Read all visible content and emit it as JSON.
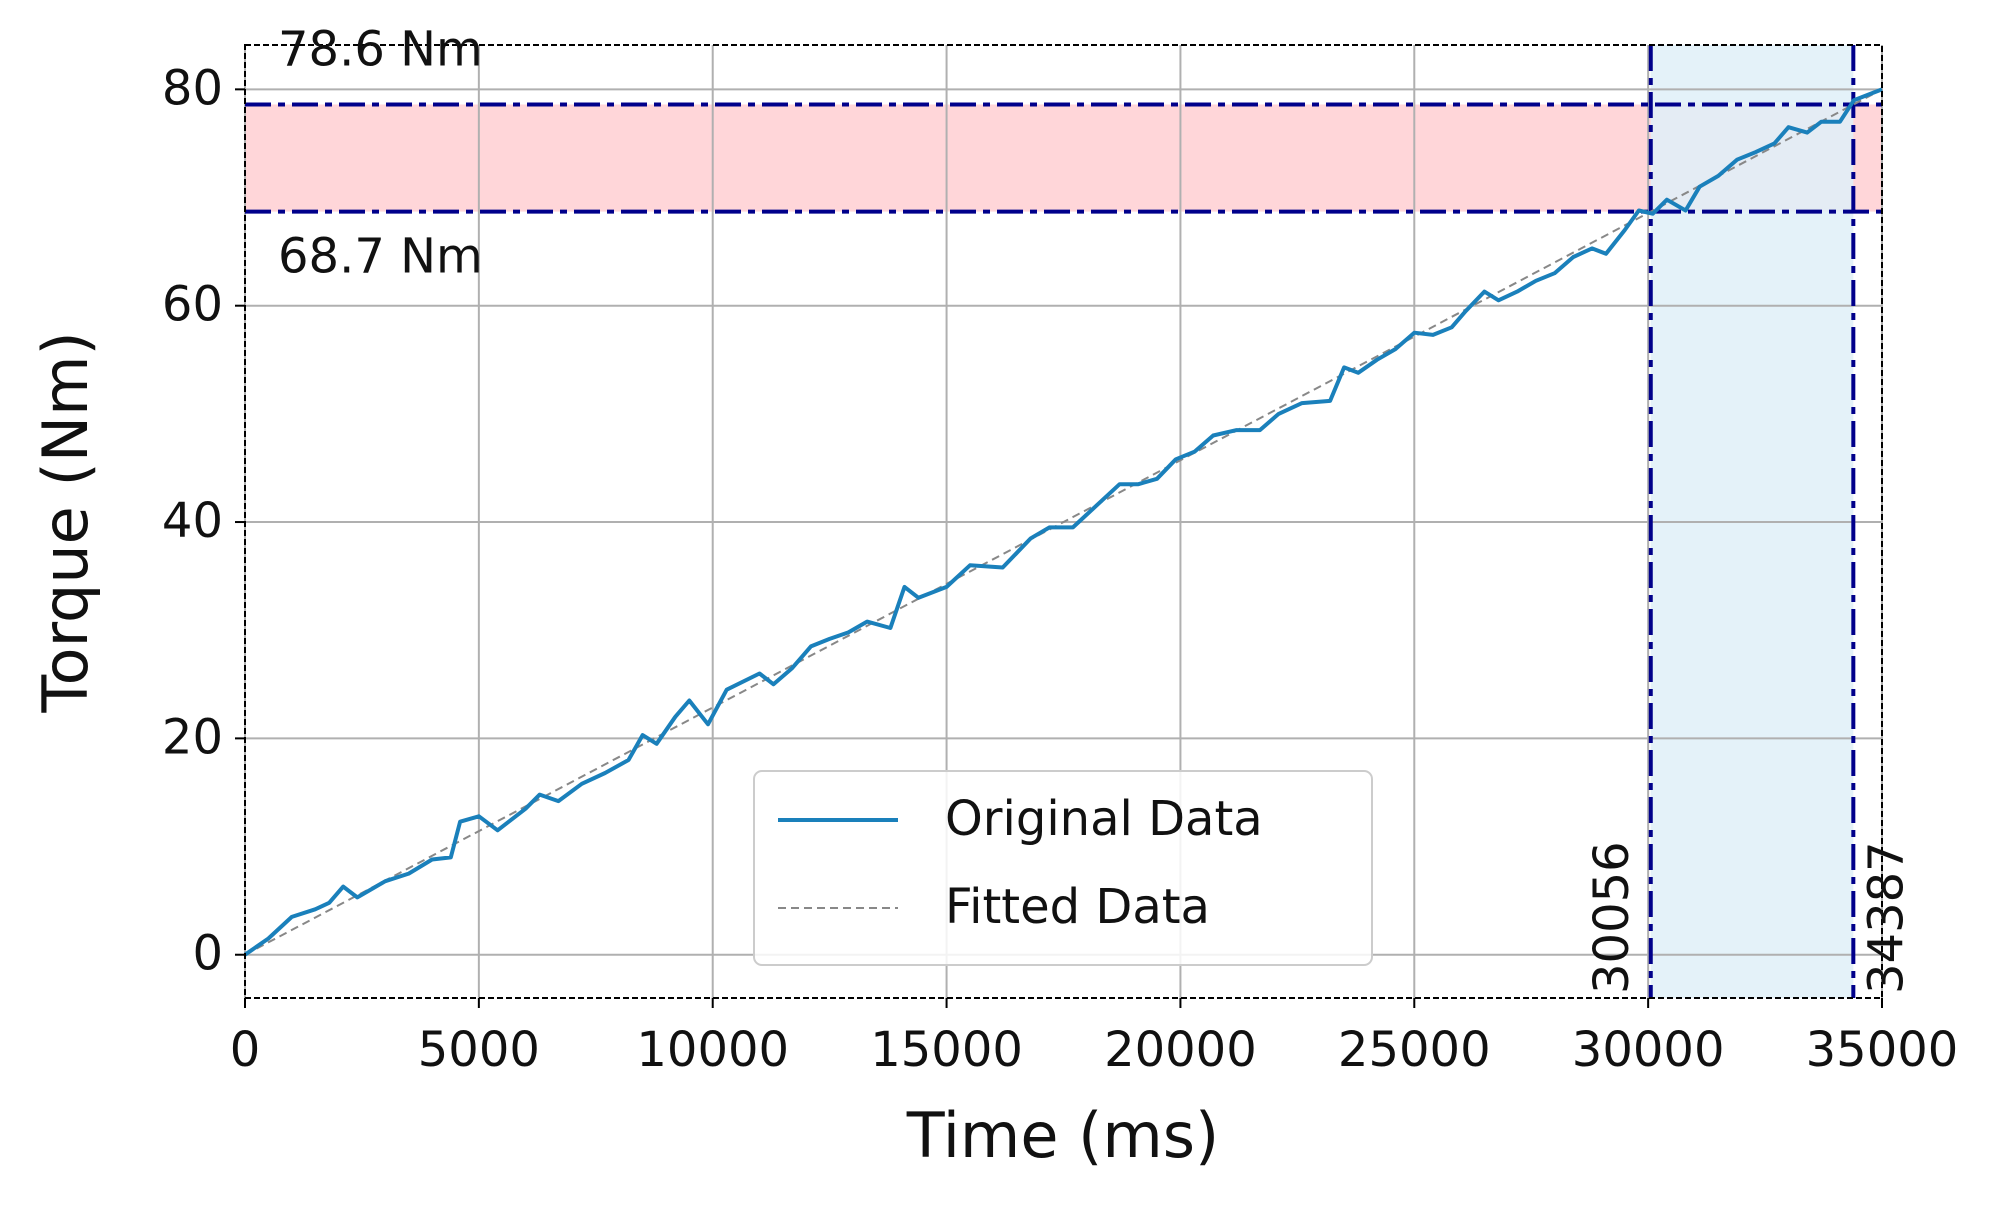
{
  "chart_data": {
    "type": "line",
    "x_label": "Time (ms)",
    "y_label": "Torque (Nm)",
    "xlim": [
      0,
      35000
    ],
    "ylim": [
      -4,
      84.1
    ],
    "xticks": [
      0,
      5000,
      10000,
      15000,
      20000,
      25000,
      30000,
      35000
    ],
    "yticks": [
      0,
      20,
      40,
      60,
      80
    ],
    "grid": true,
    "legend": "lower center",
    "series": [
      {
        "name": "Original Data",
        "color": "#1a80bb",
        "dash": "solid",
        "x": [
          0,
          500,
          1000,
          1500,
          1800,
          2100,
          2400,
          3000,
          3500,
          4000,
          4400,
          4600,
          5000,
          5400,
          6000,
          6300,
          6700,
          7200,
          7700,
          8200,
          8500,
          8800,
          9200,
          9500,
          9900,
          10300,
          11000,
          11300,
          11700,
          12100,
          12500,
          12900,
          13300,
          13800,
          14100,
          14400,
          15000,
          15500,
          16200,
          16800,
          17200,
          17700,
          18200,
          18700,
          19100,
          19500,
          19900,
          20300,
          20700,
          21200,
          21700,
          22100,
          22600,
          23200,
          23500,
          23800,
          24200,
          24600,
          25000,
          25400,
          25800,
          26100,
          26500,
          26800,
          27200,
          27600,
          28000,
          28400,
          28800,
          29100,
          29500,
          29800,
          30100,
          30400,
          30800,
          31100,
          31500,
          31900,
          32300,
          32700,
          33000,
          33400,
          33700,
          34100,
          34400,
          34700,
          35000
        ],
        "values": [
          0,
          1.5,
          3.5,
          4.2,
          4.8,
          6.3,
          5.3,
          6.8,
          7.5,
          8.8,
          9,
          12.3,
          12.8,
          11.5,
          13.5,
          14.8,
          14.2,
          15.8,
          16.8,
          18,
          20.3,
          19.5,
          22,
          23.5,
          21.3,
          24.5,
          26,
          25,
          26.5,
          28.5,
          29.2,
          29.8,
          30.8,
          30.2,
          34,
          33,
          34,
          36,
          35.8,
          38.5,
          39.5,
          39.5,
          41.5,
          43.5,
          43.5,
          44,
          45.8,
          46.5,
          48,
          48.5,
          48.5,
          50,
          51,
          51.2,
          54.3,
          53.8,
          55,
          56,
          57.5,
          57.3,
          58,
          59.5,
          61.3,
          60.5,
          61.3,
          62.3,
          63,
          64.5,
          65.3,
          64.8,
          67,
          68.8,
          68.5,
          69.8,
          68.8,
          71,
          72,
          73.5,
          74.2,
          75,
          76.5,
          76,
          77,
          77,
          79,
          79.5,
          80
        ]
      },
      {
        "name": "Fitted Data",
        "color": "#888888",
        "dash": "dashed",
        "x": [
          0,
          35000
        ],
        "values": [
          0,
          80
        ]
      }
    ],
    "hband": {
      "color": "#ffd6d9",
      "line_color": "#00008b",
      "bounds": [
        {
          "value": 78.6,
          "label": "78.6 Nm"
        },
        {
          "value": 68.7,
          "label": "68.7 Nm"
        }
      ]
    },
    "vband": {
      "color": "#dff0f8",
      "line_color": "#00008b",
      "bounds": [
        30056,
        34387
      ]
    }
  }
}
